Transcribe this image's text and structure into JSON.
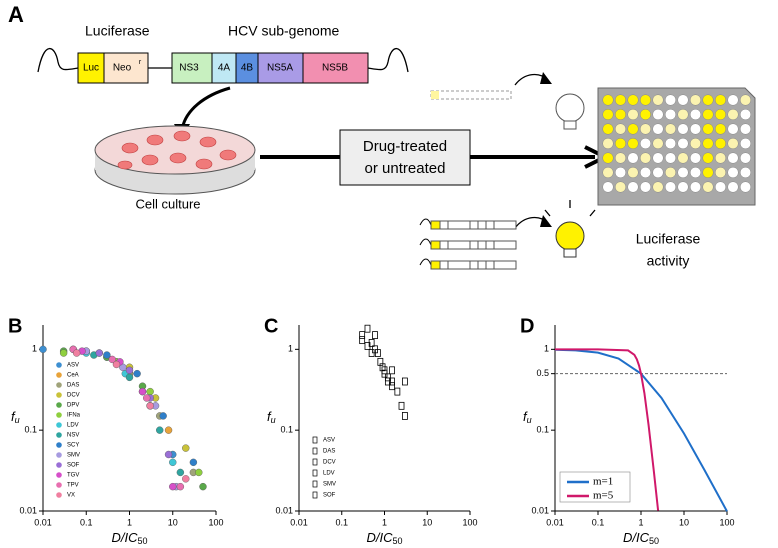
{
  "panel_a": {
    "label": "A",
    "luciferase": "Luciferase",
    "hcv": "HCV sub-genome",
    "segments": [
      "Luc",
      "Neo",
      "NS3",
      "4A",
      "4B",
      "NS5A",
      "NS5B"
    ],
    "neo_sup": "r",
    "cell_culture": "Cell culture",
    "treatment": [
      "Drug-treated",
      "or untreated"
    ],
    "readout": [
      "Luciferase",
      "activity"
    ]
  },
  "chart_data": [
    {
      "type": "scatter",
      "panel": "B",
      "marker": "circle",
      "xscale": "log",
      "yscale": "log",
      "xlim": [
        0.01,
        100
      ],
      "ylim": [
        0.01,
        2
      ],
      "xticks": [
        0.01,
        0.1,
        1,
        10,
        100
      ],
      "yticks": [
        0.01,
        0.1,
        1
      ],
      "x_label": {
        "main": "D/IC",
        "sub": "50"
      },
      "y_label": {
        "main": "f",
        "sub": "u"
      },
      "series": [
        {
          "name": "ASV",
          "color": "#3d8fd1",
          "x": [
            0.01,
            0.3,
            1,
            3,
            10
          ],
          "values": [
            1,
            0.8,
            0.5,
            0.2,
            0.05
          ]
        },
        {
          "name": "CeA",
          "color": "#e8a33a",
          "x": [
            0.05,
            0.5,
            2,
            8
          ],
          "values": [
            1,
            0.7,
            0.3,
            0.1
          ]
        },
        {
          "name": "DAS",
          "color": "#a0a37a",
          "x": [
            0.1,
            1,
            5,
            30
          ],
          "values": [
            0.95,
            0.5,
            0.15,
            0.03
          ]
        },
        {
          "name": "DCV",
          "color": "#c9c23a",
          "x": [
            0.2,
            1,
            4,
            20
          ],
          "values": [
            0.9,
            0.6,
            0.25,
            0.06
          ]
        },
        {
          "name": "DPV",
          "color": "#5aa84a",
          "x": [
            0.03,
            0.3,
            2,
            50
          ],
          "values": [
            0.95,
            0.8,
            0.35,
            0.02
          ]
        },
        {
          "name": "IFNa",
          "color": "#8fcf3f",
          "x": [
            0.03,
            0.5,
            3,
            40
          ],
          "values": [
            0.9,
            0.7,
            0.3,
            0.03
          ]
        },
        {
          "name": "LDV",
          "color": "#3fc7d6",
          "x": [
            0.1,
            0.8,
            3,
            10
          ],
          "values": [
            0.9,
            0.5,
            0.2,
            0.04
          ]
        },
        {
          "name": "NSV",
          "color": "#2fa5a0",
          "x": [
            0.15,
            1,
            5,
            15
          ],
          "values": [
            0.85,
            0.45,
            0.1,
            0.03
          ]
        },
        {
          "name": "SCY",
          "color": "#2f7fc9",
          "x": [
            0.3,
            1.5,
            6,
            30
          ],
          "values": [
            0.85,
            0.5,
            0.15,
            0.04
          ]
        },
        {
          "name": "SMV",
          "color": "#a79be0",
          "x": [
            0.1,
            0.7,
            4,
            12
          ],
          "values": [
            0.95,
            0.6,
            0.2,
            0.02
          ]
        },
        {
          "name": "SOF",
          "color": "#9a6fd6",
          "x": [
            0.2,
            1,
            3,
            8
          ],
          "values": [
            0.9,
            0.55,
            0.25,
            0.05
          ]
        },
        {
          "name": "TGV",
          "color": "#d64fc9",
          "x": [
            0.08,
            0.6,
            2,
            10
          ],
          "values": [
            0.95,
            0.7,
            0.3,
            0.02
          ]
        },
        {
          "name": "TPV",
          "color": "#e86fb0",
          "x": [
            0.05,
            0.4,
            2.5,
            15
          ],
          "values": [
            1,
            0.75,
            0.25,
            0.02
          ]
        },
        {
          "name": "VX",
          "color": "#f07fa0",
          "x": [
            0.06,
            0.5,
            3,
            20
          ],
          "values": [
            0.9,
            0.65,
            0.2,
            0.025
          ]
        }
      ]
    },
    {
      "type": "scatter",
      "panel": "C",
      "marker": "square",
      "marker_color": "#000000",
      "xscale": "log",
      "yscale": "log",
      "xlim": [
        0.01,
        100
      ],
      "ylim": [
        0.01,
        2
      ],
      "xticks": [
        0.01,
        0.1,
        1,
        10,
        100
      ],
      "yticks": [
        0.01,
        0.1,
        1
      ],
      "x_label": {
        "main": "D/IC",
        "sub": "50"
      },
      "y_label": {
        "main": "f",
        "sub": "u"
      },
      "series": [
        {
          "name": "ASV",
          "x": [
            0.4,
            0.6,
            0.9,
            2
          ],
          "values": [
            1.8,
            1.5,
            0.6,
            0.3
          ]
        },
        {
          "name": "DAS",
          "x": [
            0.3,
            0.5,
            1,
            1.5
          ],
          "values": [
            1.5,
            1.2,
            0.5,
            0.4
          ]
        },
        {
          "name": "DCV",
          "x": [
            0.3,
            0.7,
            1.2,
            2.5
          ],
          "values": [
            1.3,
            0.9,
            0.45,
            0.2
          ]
        },
        {
          "name": "LDV",
          "x": [
            0.4,
            0.8,
            1.5,
            3
          ],
          "values": [
            1.1,
            0.7,
            0.35,
            0.15
          ]
        },
        {
          "name": "SMV",
          "x": [
            0.5,
            1,
            1.2
          ],
          "values": [
            0.9,
            0.55,
            0.4
          ]
        },
        {
          "name": "SOF",
          "x": [
            0.6,
            1.5,
            3
          ],
          "values": [
            1,
            0.55,
            0.4
          ]
        }
      ]
    },
    {
      "type": "line",
      "panel": "D",
      "xscale": "log",
      "yscale": "log",
      "xlim": [
        0.01,
        100
      ],
      "ylim": [
        0.01,
        2
      ],
      "xticks": [
        0.01,
        0.1,
        1,
        10,
        100
      ],
      "yticks": [
        0.01,
        0.1,
        0.5,
        1
      ],
      "hline": 0.5,
      "x_label": {
        "main": "D/IC",
        "sub": "50"
      },
      "y_label": {
        "main": "f",
        "sub": "u"
      },
      "legend": "lower left",
      "series": [
        {
          "name": "m=1",
          "color": "#1f6fc9",
          "x": [
            0.01,
            0.03,
            0.1,
            0.3,
            1,
            3,
            10,
            30,
            100
          ],
          "values": [
            0.99,
            0.97,
            0.91,
            0.77,
            0.5,
            0.25,
            0.091,
            0.032,
            0.0099
          ]
        },
        {
          "name": "m=5",
          "color": "#d0186a",
          "x": [
            0.01,
            0.1,
            0.5,
            0.7,
            0.8,
            0.9,
            1,
            1.2,
            1.5,
            2,
            2.5
          ],
          "values": [
            1,
            1,
            0.97,
            0.856,
            0.753,
            0.63,
            0.5,
            0.287,
            0.116,
            0.0303,
            0.0101
          ]
        }
      ]
    }
  ]
}
